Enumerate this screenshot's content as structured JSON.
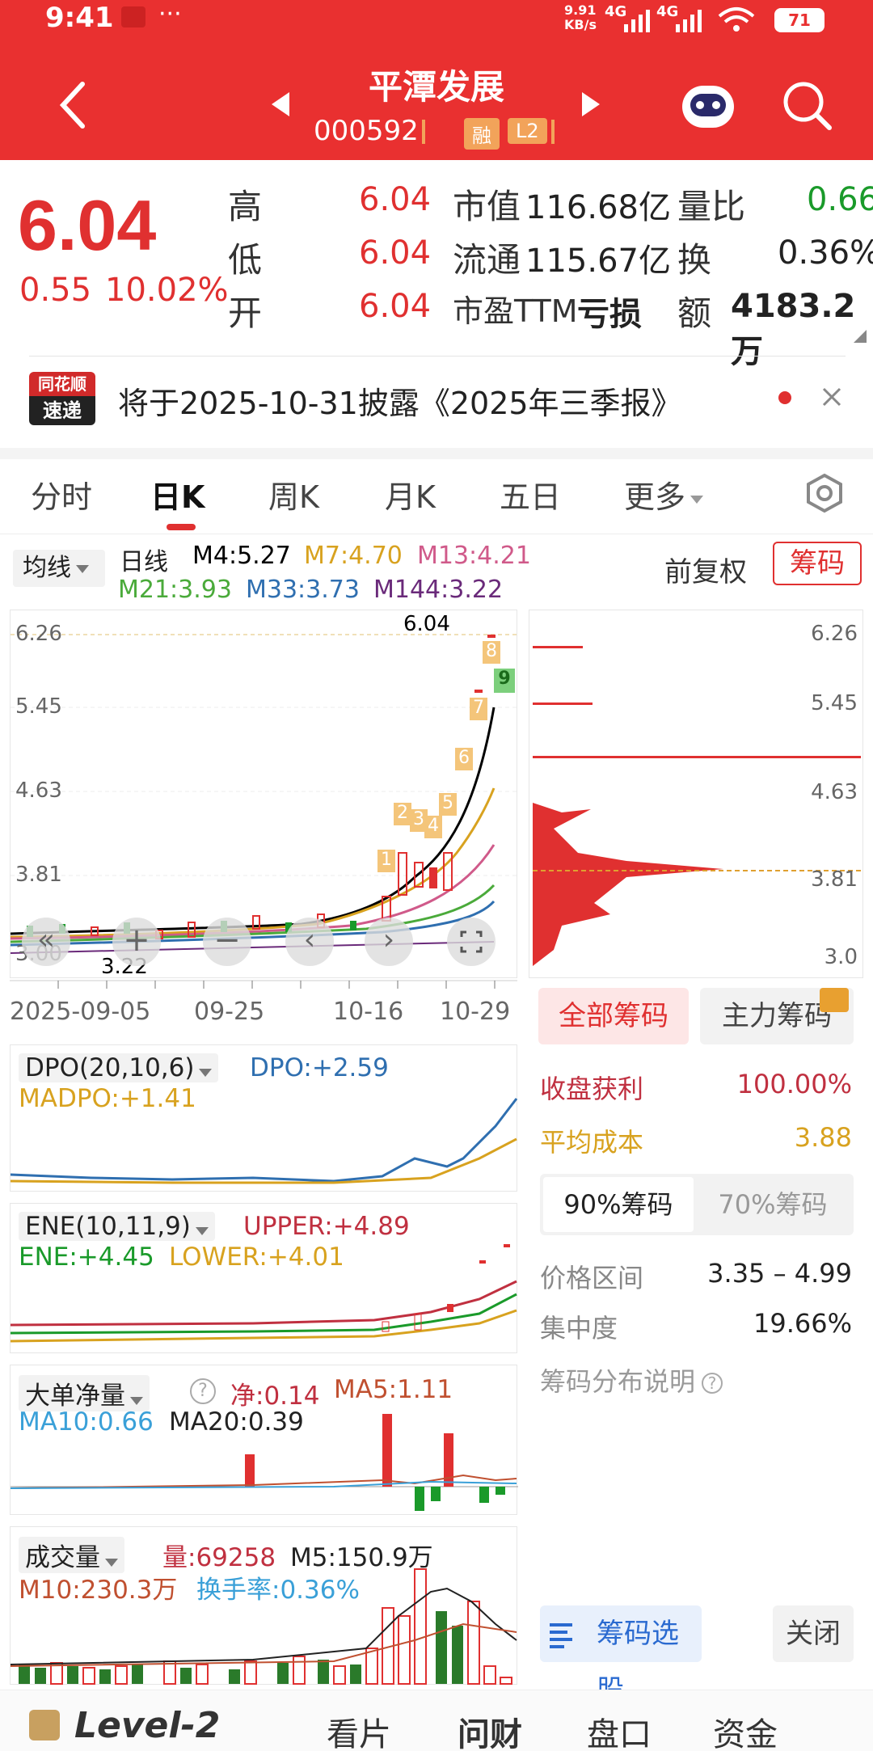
{
  "status_bar": {
    "time": "9:41",
    "dots": "···",
    "net_speed": "9.91\nKB/s",
    "net1": "4G",
    "net2": "4G",
    "battery": "71"
  },
  "header": {
    "title": "平潭发展",
    "code": "000592",
    "badge1": "融",
    "badge2": "L2"
  },
  "quote": {
    "price": "6.04",
    "change": "0.55",
    "change_pct": "10.02%",
    "high_label": "高",
    "high": "6.04",
    "low_label": "低",
    "low": "6.04",
    "open_label": "开",
    "open": "6.04",
    "mcap_label": "市值",
    "mcap": "116.68亿",
    "float_label": "流通",
    "float": "115.67亿",
    "pe_label": "市盈TTM",
    "pe": "亏损",
    "vr_label": "量比",
    "vr": "0.66",
    "turn_label": "换",
    "turn": "0.36%",
    "amt_label": "额",
    "amt": "4183.2万"
  },
  "notice": {
    "logo_top": "同花顺",
    "logo_bottom": "速递",
    "text": "将于2025-10-31披露《2025年三季报》"
  },
  "tabs": [
    "分时",
    "日K",
    "周K",
    "月K",
    "五日",
    "更多"
  ],
  "kline": {
    "ma_select": "均线",
    "period": "日线",
    "m4": "M4:5.27",
    "m7": "M7:4.70",
    "m13": "M13:4.21",
    "m21": "M21:3.93",
    "m33": "M33:3.73",
    "m144": "M144:3.22",
    "adjust": "前复权",
    "chips": "筹码",
    "price_top": "6.04",
    "price_bottom": "3.22",
    "y_labels": [
      "6.26",
      "5.45",
      "4.63",
      "3.81",
      "3.00"
    ],
    "x_labels": [
      "2025-09-05",
      "09-25",
      "10-16",
      "10-29"
    ],
    "seq_labels": [
      "1",
      "2",
      "3",
      "4",
      "5",
      "6",
      "7",
      "8",
      "9"
    ]
  },
  "chips_panel": {
    "y_labels": [
      "6.26",
      "5.45",
      "4.63",
      "3.81",
      "3.0"
    ],
    "btn_all": "全部筹码",
    "btn_main": "主力筹码",
    "profit_label": "收盘获利",
    "profit": "100.00%",
    "avg_label": "平均成本",
    "avg": "3.88",
    "tab90": "90%筹码",
    "tab70": "70%筹码",
    "range_label": "价格区间",
    "range": "3.35 – 4.99",
    "conc_label": "集中度",
    "conc": "19.66%",
    "explain": "筹码分布说明",
    "select_btn": "筹码选股",
    "close_btn": "关闭"
  },
  "dpo": {
    "title": "DPO(20,10,6)",
    "dpo": "DPO:+2.59",
    "madpo": "MADPO:+1.41"
  },
  "ene": {
    "title": "ENE(10,11,9)",
    "upper": "UPPER:+4.89",
    "ene": "ENE:+4.45",
    "lower": "LOWER:+4.01"
  },
  "bigorder": {
    "title": "大单净量",
    "net": "净:0.14",
    "ma5": "MA5:1.11",
    "ma10": "MA10:0.66",
    "ma20": "MA20:0.39"
  },
  "volume": {
    "title": "成交量",
    "vol": "量:69258",
    "m5": "M5:150.9万",
    "m10": "M10:230.3万",
    "turnover": "换手率:0.36%"
  },
  "bottom": {
    "items": [
      "Level-2",
      "看片",
      "问财",
      "盘口",
      "资金"
    ]
  },
  "colors": {
    "red": "#e93030",
    "green": "#1a9a2a",
    "m4": "#000000",
    "m7": "#d8a21f",
    "m13": "#d05a8a",
    "m21": "#4aaa3a",
    "m33": "#2f6fb0",
    "m144": "#6a2a7a"
  }
}
